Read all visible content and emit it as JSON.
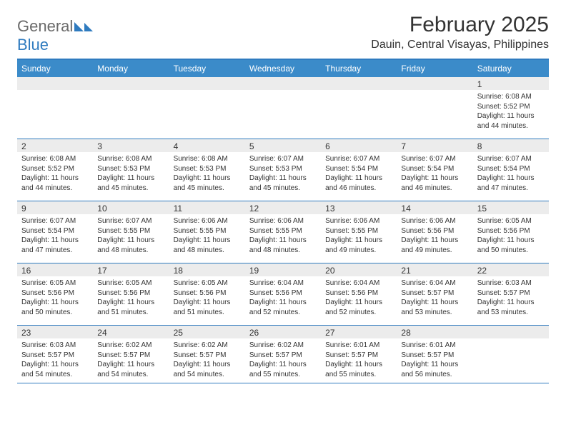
{
  "colors": {
    "header_bar": "#3b8bc9",
    "border": "#2f7bbf",
    "daynum_bg": "#ececec",
    "text": "#333333",
    "logo_gray": "#6a6a6a",
    "logo_blue": "#2f7bbf",
    "background": "#ffffff"
  },
  "logo": {
    "part1": "General",
    "part2": "Blue"
  },
  "title": "February 2025",
  "location": "Dauin, Central Visayas, Philippines",
  "weekdays": [
    "Sunday",
    "Monday",
    "Tuesday",
    "Wednesday",
    "Thursday",
    "Friday",
    "Saturday"
  ],
  "weeks": [
    [
      {
        "n": "",
        "sr": "",
        "ss": "",
        "dl": ""
      },
      {
        "n": "",
        "sr": "",
        "ss": "",
        "dl": ""
      },
      {
        "n": "",
        "sr": "",
        "ss": "",
        "dl": ""
      },
      {
        "n": "",
        "sr": "",
        "ss": "",
        "dl": ""
      },
      {
        "n": "",
        "sr": "",
        "ss": "",
        "dl": ""
      },
      {
        "n": "",
        "sr": "",
        "ss": "",
        "dl": ""
      },
      {
        "n": "1",
        "sr": "Sunrise: 6:08 AM",
        "ss": "Sunset: 5:52 PM",
        "dl": "Daylight: 11 hours and 44 minutes."
      }
    ],
    [
      {
        "n": "2",
        "sr": "Sunrise: 6:08 AM",
        "ss": "Sunset: 5:52 PM",
        "dl": "Daylight: 11 hours and 44 minutes."
      },
      {
        "n": "3",
        "sr": "Sunrise: 6:08 AM",
        "ss": "Sunset: 5:53 PM",
        "dl": "Daylight: 11 hours and 45 minutes."
      },
      {
        "n": "4",
        "sr": "Sunrise: 6:08 AM",
        "ss": "Sunset: 5:53 PM",
        "dl": "Daylight: 11 hours and 45 minutes."
      },
      {
        "n": "5",
        "sr": "Sunrise: 6:07 AM",
        "ss": "Sunset: 5:53 PM",
        "dl": "Daylight: 11 hours and 45 minutes."
      },
      {
        "n": "6",
        "sr": "Sunrise: 6:07 AM",
        "ss": "Sunset: 5:54 PM",
        "dl": "Daylight: 11 hours and 46 minutes."
      },
      {
        "n": "7",
        "sr": "Sunrise: 6:07 AM",
        "ss": "Sunset: 5:54 PM",
        "dl": "Daylight: 11 hours and 46 minutes."
      },
      {
        "n": "8",
        "sr": "Sunrise: 6:07 AM",
        "ss": "Sunset: 5:54 PM",
        "dl": "Daylight: 11 hours and 47 minutes."
      }
    ],
    [
      {
        "n": "9",
        "sr": "Sunrise: 6:07 AM",
        "ss": "Sunset: 5:54 PM",
        "dl": "Daylight: 11 hours and 47 minutes."
      },
      {
        "n": "10",
        "sr": "Sunrise: 6:07 AM",
        "ss": "Sunset: 5:55 PM",
        "dl": "Daylight: 11 hours and 48 minutes."
      },
      {
        "n": "11",
        "sr": "Sunrise: 6:06 AM",
        "ss": "Sunset: 5:55 PM",
        "dl": "Daylight: 11 hours and 48 minutes."
      },
      {
        "n": "12",
        "sr": "Sunrise: 6:06 AM",
        "ss": "Sunset: 5:55 PM",
        "dl": "Daylight: 11 hours and 48 minutes."
      },
      {
        "n": "13",
        "sr": "Sunrise: 6:06 AM",
        "ss": "Sunset: 5:55 PM",
        "dl": "Daylight: 11 hours and 49 minutes."
      },
      {
        "n": "14",
        "sr": "Sunrise: 6:06 AM",
        "ss": "Sunset: 5:56 PM",
        "dl": "Daylight: 11 hours and 49 minutes."
      },
      {
        "n": "15",
        "sr": "Sunrise: 6:05 AM",
        "ss": "Sunset: 5:56 PM",
        "dl": "Daylight: 11 hours and 50 minutes."
      }
    ],
    [
      {
        "n": "16",
        "sr": "Sunrise: 6:05 AM",
        "ss": "Sunset: 5:56 PM",
        "dl": "Daylight: 11 hours and 50 minutes."
      },
      {
        "n": "17",
        "sr": "Sunrise: 6:05 AM",
        "ss": "Sunset: 5:56 PM",
        "dl": "Daylight: 11 hours and 51 minutes."
      },
      {
        "n": "18",
        "sr": "Sunrise: 6:05 AM",
        "ss": "Sunset: 5:56 PM",
        "dl": "Daylight: 11 hours and 51 minutes."
      },
      {
        "n": "19",
        "sr": "Sunrise: 6:04 AM",
        "ss": "Sunset: 5:56 PM",
        "dl": "Daylight: 11 hours and 52 minutes."
      },
      {
        "n": "20",
        "sr": "Sunrise: 6:04 AM",
        "ss": "Sunset: 5:56 PM",
        "dl": "Daylight: 11 hours and 52 minutes."
      },
      {
        "n": "21",
        "sr": "Sunrise: 6:04 AM",
        "ss": "Sunset: 5:57 PM",
        "dl": "Daylight: 11 hours and 53 minutes."
      },
      {
        "n": "22",
        "sr": "Sunrise: 6:03 AM",
        "ss": "Sunset: 5:57 PM",
        "dl": "Daylight: 11 hours and 53 minutes."
      }
    ],
    [
      {
        "n": "23",
        "sr": "Sunrise: 6:03 AM",
        "ss": "Sunset: 5:57 PM",
        "dl": "Daylight: 11 hours and 54 minutes."
      },
      {
        "n": "24",
        "sr": "Sunrise: 6:02 AM",
        "ss": "Sunset: 5:57 PM",
        "dl": "Daylight: 11 hours and 54 minutes."
      },
      {
        "n": "25",
        "sr": "Sunrise: 6:02 AM",
        "ss": "Sunset: 5:57 PM",
        "dl": "Daylight: 11 hours and 54 minutes."
      },
      {
        "n": "26",
        "sr": "Sunrise: 6:02 AM",
        "ss": "Sunset: 5:57 PM",
        "dl": "Daylight: 11 hours and 55 minutes."
      },
      {
        "n": "27",
        "sr": "Sunrise: 6:01 AM",
        "ss": "Sunset: 5:57 PM",
        "dl": "Daylight: 11 hours and 55 minutes."
      },
      {
        "n": "28",
        "sr": "Sunrise: 6:01 AM",
        "ss": "Sunset: 5:57 PM",
        "dl": "Daylight: 11 hours and 56 minutes."
      },
      {
        "n": "",
        "sr": "",
        "ss": "",
        "dl": ""
      }
    ]
  ]
}
